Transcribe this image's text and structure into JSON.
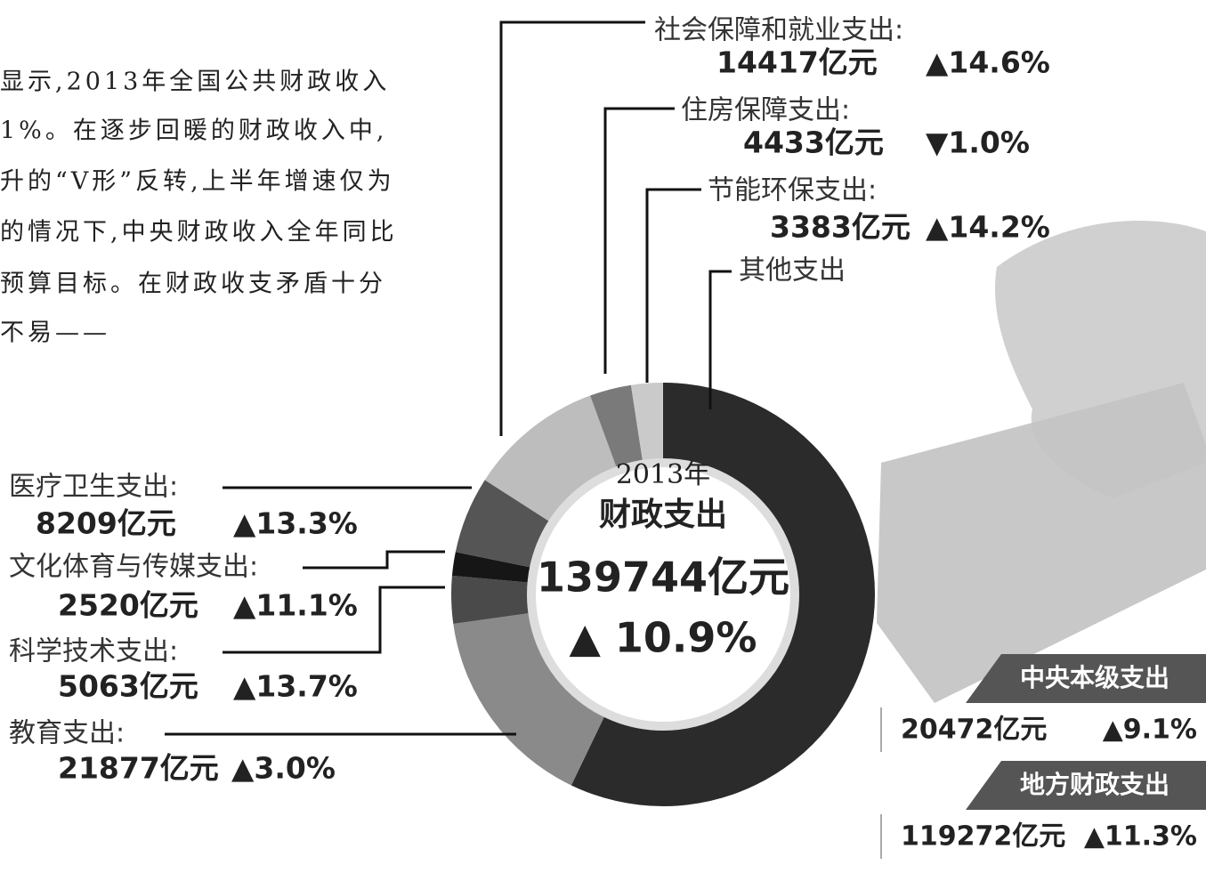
{
  "article_text": [
    "显示,2013年全国公共财政收入",
    "1%。在逐步回暖的财政收入中,",
    "升的“V形”反转,上半年增速仅为",
    "的情况下,中央财政收入全年同比",
    "预算目标。在财政收支矛盾十分",
    "不易——"
  ],
  "chart_data": {
    "type": "donut",
    "center_year": "2013年",
    "center_title": "财政支出",
    "center_total": "139744亿元",
    "center_change": "▲ 10.9%",
    "categories": [
      "其他支出",
      "教育支出:",
      "科学技术支出:",
      "文化体育与传媒支出:",
      "医疗卫生支出:",
      "社会保障和就业支出:",
      "住房保障支出:",
      "节能环保支出:"
    ],
    "values": [
      79842,
      21877,
      5063,
      2520,
      8209,
      14417,
      4433,
      3383
    ],
    "value_labels": [
      null,
      "21877亿元",
      "5063亿元",
      "2520亿元",
      "8209亿元",
      "14417亿元",
      "4433亿元",
      "3383亿元"
    ],
    "changes": [
      null,
      "▲3.0%",
      "▲13.7%",
      "▲11.1%",
      "▲13.3%",
      "▲14.6%",
      "▼1.0%",
      "▲14.2%"
    ],
    "colors": [
      "#2b2b2b",
      "#8a8a8a",
      "#4a4a4a",
      "#161616",
      "#555555",
      "#bdbdbd",
      "#7a7a7a",
      "#cacaca"
    ]
  },
  "side_boxes": [
    {
      "title": "中央本级支出",
      "amount": "20472亿元",
      "change": "▲9.1%"
    },
    {
      "title": "地方财政支出",
      "amount": "119272亿元",
      "change": "▲11.3%"
    }
  ]
}
